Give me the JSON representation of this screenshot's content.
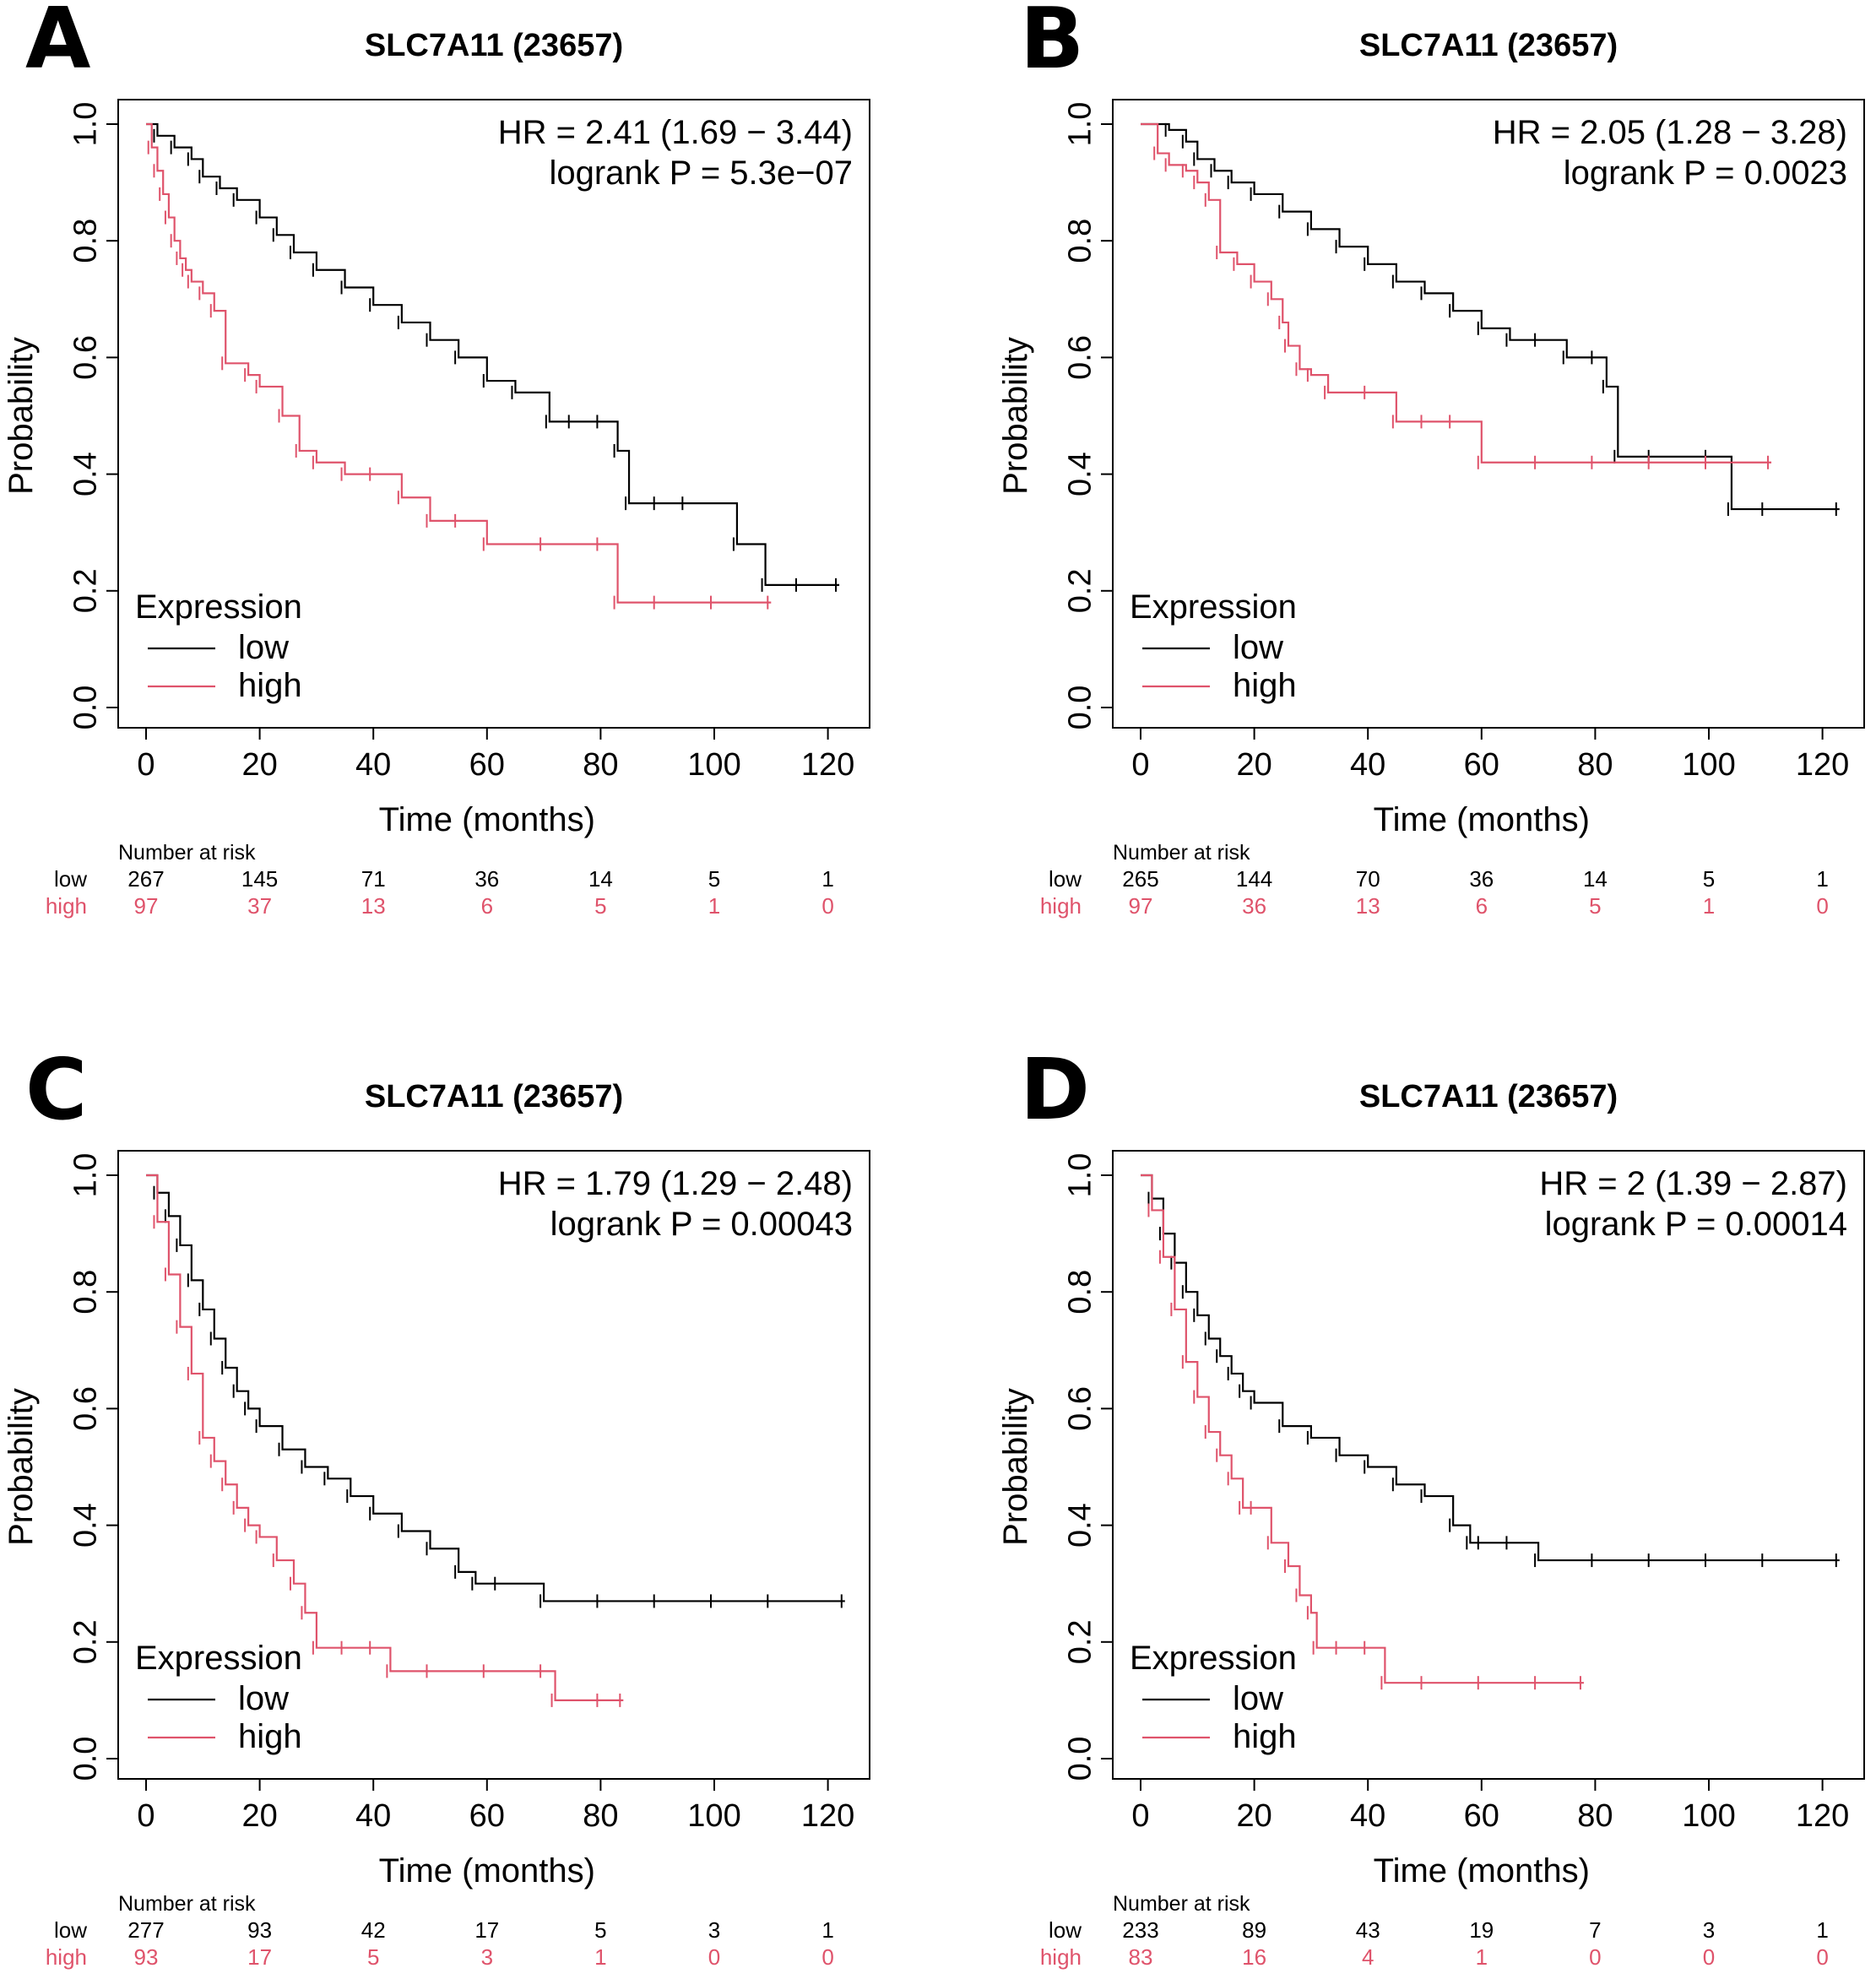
{
  "figure": {
    "panels": [
      "A",
      "B",
      "C",
      "D"
    ]
  },
  "colors": {
    "low": "#000000",
    "high": "#df536b"
  },
  "chart_data": [
    {
      "panel": "A",
      "type": "line",
      "subtype": "kaplan-meier",
      "title": "SLC7A11 (23657)",
      "xlabel": "Time (months)",
      "ylabel": "Probability",
      "xlim": [
        0,
        120
      ],
      "ylim": [
        0,
        1
      ],
      "xticks": [
        "0",
        "20",
        "40",
        "60",
        "80",
        "100",
        "120"
      ],
      "yticks": [
        "0.0",
        "0.2",
        "0.4",
        "0.6",
        "0.8",
        "1.0"
      ],
      "hr_text": "HR = 2.41 (1.69 − 3.44)",
      "p_text": "logrank P = 5.3e−07",
      "legend_title": "Expression",
      "legend": [
        "low",
        "high"
      ],
      "risk_header": "Number at risk",
      "risk_times": [
        0,
        20,
        40,
        60,
        80,
        100,
        120
      ],
      "series": [
        {
          "name": "low",
          "x": [
            0,
            2,
            5,
            8,
            10,
            13,
            16,
            20,
            23,
            26,
            30,
            35,
            40,
            45,
            50,
            55,
            60,
            65,
            71,
            75,
            80,
            83,
            85,
            90,
            95,
            104,
            109,
            115,
            122
          ],
          "y": [
            1.0,
            0.98,
            0.96,
            0.94,
            0.91,
            0.89,
            0.87,
            0.84,
            0.81,
            0.78,
            0.75,
            0.72,
            0.69,
            0.66,
            0.63,
            0.6,
            0.56,
            0.54,
            0.49,
            0.49,
            0.49,
            0.44,
            0.35,
            0.35,
            0.35,
            0.28,
            0.21,
            0.21,
            0.21
          ],
          "risk": [
            "267",
            "145",
            "71",
            "36",
            "14",
            "5",
            "1"
          ]
        },
        {
          "name": "high",
          "x": [
            0,
            1,
            2,
            3,
            4,
            5,
            6,
            7,
            8,
            10,
            12,
            14,
            18,
            20,
            24,
            27,
            30,
            35,
            40,
            45,
            50,
            55,
            60,
            70,
            80,
            83,
            90,
            100,
            110
          ],
          "y": [
            1.0,
            0.96,
            0.92,
            0.88,
            0.84,
            0.8,
            0.77,
            0.75,
            0.73,
            0.71,
            0.68,
            0.59,
            0.57,
            0.55,
            0.5,
            0.44,
            0.42,
            0.4,
            0.4,
            0.36,
            0.32,
            0.32,
            0.28,
            0.28,
            0.28,
            0.18,
            0.18,
            0.18,
            0.18
          ],
          "risk": [
            "97",
            "37",
            "13",
            "6",
            "5",
            "1",
            "0"
          ]
        }
      ]
    },
    {
      "panel": "B",
      "type": "line",
      "subtype": "kaplan-meier",
      "title": "SLC7A11 (23657)",
      "xlabel": "Time (months)",
      "ylabel": "Probability",
      "xlim": [
        0,
        120
      ],
      "ylim": [
        0,
        1
      ],
      "xticks": [
        "0",
        "20",
        "40",
        "60",
        "80",
        "100",
        "120"
      ],
      "yticks": [
        "0.0",
        "0.2",
        "0.4",
        "0.6",
        "0.8",
        "1.0"
      ],
      "hr_text": "HR = 2.05 (1.28 − 3.28)",
      "p_text": "logrank P = 0.0023",
      "legend_title": "Expression",
      "legend": [
        "low",
        "high"
      ],
      "risk_header": "Number at risk",
      "risk_times": [
        0,
        20,
        40,
        60,
        80,
        100,
        120
      ],
      "series": [
        {
          "name": "low",
          "x": [
            0,
            5,
            8,
            10,
            13,
            16,
            20,
            25,
            30,
            35,
            40,
            45,
            50,
            55,
            60,
            65,
            70,
            75,
            80,
            82,
            84,
            90,
            100,
            104,
            110,
            123
          ],
          "y": [
            1.0,
            0.99,
            0.97,
            0.94,
            0.92,
            0.9,
            0.88,
            0.85,
            0.82,
            0.79,
            0.76,
            0.73,
            0.71,
            0.68,
            0.65,
            0.63,
            0.63,
            0.6,
            0.6,
            0.55,
            0.43,
            0.43,
            0.43,
            0.34,
            0.34,
            0.34
          ],
          "risk": [
            "265",
            "144",
            "70",
            "36",
            "14",
            "5",
            "1"
          ]
        },
        {
          "name": "high",
          "x": [
            0,
            3,
            5,
            8,
            10,
            12,
            14,
            17,
            20,
            23,
            25,
            26,
            28,
            30,
            33,
            40,
            45,
            50,
            55,
            60,
            70,
            80,
            90,
            100,
            111
          ],
          "y": [
            1.0,
            0.95,
            0.93,
            0.92,
            0.9,
            0.87,
            0.78,
            0.76,
            0.73,
            0.7,
            0.66,
            0.62,
            0.58,
            0.57,
            0.54,
            0.54,
            0.49,
            0.49,
            0.49,
            0.42,
            0.42,
            0.42,
            0.42,
            0.42,
            0.42
          ],
          "risk": [
            "97",
            "36",
            "13",
            "6",
            "5",
            "1",
            "0"
          ]
        }
      ]
    },
    {
      "panel": "C",
      "type": "line",
      "subtype": "kaplan-meier",
      "title": "SLC7A11 (23657)",
      "xlabel": "Time (months)",
      "ylabel": "Probability",
      "xlim": [
        0,
        120
      ],
      "ylim": [
        0,
        1
      ],
      "xticks": [
        "0",
        "20",
        "40",
        "60",
        "80",
        "100",
        "120"
      ],
      "yticks": [
        "0.0",
        "0.2",
        "0.4",
        "0.6",
        "0.8",
        "1.0"
      ],
      "hr_text": "HR = 1.79 (1.29 − 2.48)",
      "p_text": "logrank P = 0.00043",
      "legend_title": "Expression",
      "legend": [
        "low",
        "high"
      ],
      "risk_header": "Number at risk",
      "risk_times": [
        0,
        20,
        40,
        60,
        80,
        100,
        120
      ],
      "series": [
        {
          "name": "low",
          "x": [
            0,
            2,
            4,
            6,
            8,
            10,
            12,
            14,
            16,
            18,
            20,
            24,
            28,
            32,
            36,
            40,
            45,
            50,
            55,
            58,
            62,
            70,
            80,
            90,
            100,
            110,
            123
          ],
          "y": [
            1.0,
            0.97,
            0.93,
            0.88,
            0.82,
            0.77,
            0.72,
            0.67,
            0.63,
            0.6,
            0.57,
            0.53,
            0.5,
            0.48,
            0.45,
            0.42,
            0.39,
            0.36,
            0.32,
            0.3,
            0.3,
            0.27,
            0.27,
            0.27,
            0.27,
            0.27,
            0.27
          ],
          "risk": [
            "277",
            "93",
            "42",
            "17",
            "5",
            "3",
            "1"
          ]
        },
        {
          "name": "high",
          "x": [
            0,
            2,
            4,
            6,
            8,
            10,
            12,
            14,
            16,
            18,
            20,
            23,
            26,
            28,
            30,
            35,
            40,
            43,
            50,
            60,
            70,
            72,
            80,
            84
          ],
          "y": [
            1.0,
            0.92,
            0.83,
            0.74,
            0.66,
            0.55,
            0.51,
            0.47,
            0.43,
            0.4,
            0.38,
            0.34,
            0.3,
            0.25,
            0.19,
            0.19,
            0.19,
            0.15,
            0.15,
            0.15,
            0.15,
            0.1,
            0.1,
            0.1
          ],
          "risk": [
            "93",
            "17",
            "5",
            "3",
            "1",
            "0",
            "0"
          ]
        }
      ]
    },
    {
      "panel": "D",
      "type": "line",
      "subtype": "kaplan-meier",
      "title": "SLC7A11 (23657)",
      "xlabel": "Time (months)",
      "ylabel": "Probability",
      "xlim": [
        0,
        120
      ],
      "ylim": [
        0,
        1
      ],
      "xticks": [
        "0",
        "20",
        "40",
        "60",
        "80",
        "100",
        "120"
      ],
      "yticks": [
        "0.0",
        "0.2",
        "0.4",
        "0.6",
        "0.8",
        "1.0"
      ],
      "hr_text": "HR = 2 (1.39 − 2.87)",
      "p_text": "logrank P = 0.00014",
      "legend_title": "Expression",
      "legend": [
        "low",
        "high"
      ],
      "risk_header": "Number at risk",
      "risk_times": [
        0,
        20,
        40,
        60,
        80,
        100,
        120
      ],
      "series": [
        {
          "name": "low",
          "x": [
            0,
            2,
            4,
            6,
            8,
            10,
            12,
            14,
            16,
            18,
            20,
            25,
            30,
            35,
            40,
            45,
            50,
            55,
            58,
            60,
            65,
            70,
            80,
            90,
            100,
            110,
            123
          ],
          "y": [
            1.0,
            0.96,
            0.9,
            0.85,
            0.8,
            0.76,
            0.72,
            0.69,
            0.66,
            0.63,
            0.61,
            0.57,
            0.55,
            0.52,
            0.5,
            0.47,
            0.45,
            0.4,
            0.37,
            0.37,
            0.37,
            0.34,
            0.34,
            0.34,
            0.34,
            0.34,
            0.34
          ],
          "risk": [
            "233",
            "89",
            "43",
            "19",
            "7",
            "3",
            "1"
          ]
        },
        {
          "name": "high",
          "x": [
            0,
            2,
            4,
            6,
            8,
            10,
            12,
            14,
            16,
            18,
            20,
            23,
            26,
            28,
            30,
            31,
            35,
            40,
            43,
            50,
            60,
            70,
            78
          ],
          "y": [
            1.0,
            0.94,
            0.86,
            0.77,
            0.68,
            0.62,
            0.56,
            0.52,
            0.48,
            0.43,
            0.43,
            0.37,
            0.33,
            0.28,
            0.25,
            0.19,
            0.19,
            0.19,
            0.13,
            0.13,
            0.13,
            0.13,
            0.13
          ],
          "risk": [
            "83",
            "16",
            "4",
            "1",
            "0",
            "0",
            "0"
          ]
        }
      ]
    }
  ]
}
